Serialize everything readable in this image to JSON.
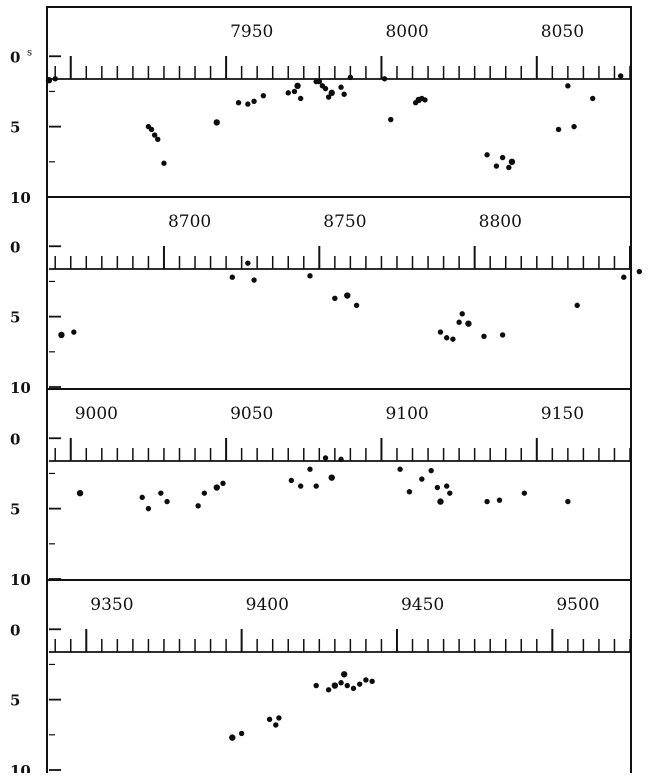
{
  "figure": {
    "unit_superscript": "s"
  },
  "chart_data": [
    {
      "type": "scatter",
      "x_ticks": [
        "7950",
        "8000",
        "8050"
      ],
      "y_ticks": [
        "0",
        "5",
        "10"
      ],
      "xlim": [
        7893,
        8080
      ],
      "ylim": [
        -3.5,
        10
      ],
      "y_direction": "down",
      "grid": false,
      "points": [
        [
          7893,
          1.7
        ],
        [
          7895,
          1.6
        ],
        [
          7925,
          5.0
        ],
        [
          7926,
          5.2
        ],
        [
          7927,
          5.6
        ],
        [
          7928,
          5.9
        ],
        [
          7930,
          7.6
        ],
        [
          7947,
          4.7
        ],
        [
          7954,
          3.3
        ],
        [
          7957,
          3.4
        ],
        [
          7959,
          3.2
        ],
        [
          7962,
          2.8
        ],
        [
          7970,
          2.6
        ],
        [
          7972,
          2.5
        ],
        [
          7973,
          2.1
        ],
        [
          7974,
          3.0
        ],
        [
          7979,
          1.8
        ],
        [
          7980,
          1.8
        ],
        [
          7981,
          2.1
        ],
        [
          7982,
          2.3
        ],
        [
          7983,
          2.9
        ],
        [
          7984,
          2.6
        ],
        [
          7987,
          2.2
        ],
        [
          7988,
          2.7
        ],
        [
          7990,
          1.5
        ],
        [
          8001,
          1.6
        ],
        [
          8003,
          4.5
        ],
        [
          8011,
          3.3
        ],
        [
          8012,
          3.1
        ],
        [
          8013,
          3.0
        ],
        [
          8014,
          3.1
        ],
        [
          8034,
          7.0
        ],
        [
          8037,
          7.8
        ],
        [
          8039,
          7.2
        ],
        [
          8041,
          7.9
        ],
        [
          8042,
          7.5
        ],
        [
          8057,
          5.2
        ],
        [
          8060,
          2.1
        ],
        [
          8062,
          5.0
        ],
        [
          8068,
          3.0
        ],
        [
          8077,
          1.4
        ]
      ]
    },
    {
      "type": "scatter",
      "x_ticks": [
        "8700",
        "8750",
        "8800"
      ],
      "y_ticks": [
        "0",
        "5",
        "10"
      ],
      "xlim": [
        8663,
        8850
      ],
      "ylim": [
        -3.5,
        10
      ],
      "y_direction": "down",
      "grid": false,
      "points": [
        [
          8667,
          6.3
        ],
        [
          8671,
          6.1
        ],
        [
          8722,
          2.2
        ],
        [
          8727,
          1.2
        ],
        [
          8729,
          2.4
        ],
        [
          8747,
          2.1
        ],
        [
          8755,
          3.7
        ],
        [
          8759,
          3.5
        ],
        [
          8762,
          4.2
        ],
        [
          8789,
          6.1
        ],
        [
          8791,
          6.5
        ],
        [
          8793,
          6.6
        ],
        [
          8795,
          5.4
        ],
        [
          8796,
          4.8
        ],
        [
          8798,
          5.5
        ],
        [
          8803,
          6.4
        ],
        [
          8809,
          6.3
        ],
        [
          8833,
          4.2
        ],
        [
          8848,
          2.2
        ],
        [
          8853,
          1.8
        ]
      ]
    },
    {
      "type": "scatter",
      "x_ticks": [
        "9000",
        "9050",
        "9100",
        "9150"
      ],
      "y_ticks": [
        "0",
        "5",
        "10"
      ],
      "xlim": [
        8993,
        9180
      ],
      "ylim": [
        -3.5,
        10
      ],
      "y_direction": "down",
      "grid": false,
      "points": [
        [
          9003,
          3.9
        ],
        [
          9023,
          4.2
        ],
        [
          9025,
          5.0
        ],
        [
          9029,
          3.9
        ],
        [
          9031,
          4.5
        ],
        [
          9041,
          4.8
        ],
        [
          9043,
          3.9
        ],
        [
          9047,
          3.5
        ],
        [
          9049,
          3.2
        ],
        [
          9071,
          3.0
        ],
        [
          9074,
          3.4
        ],
        [
          9077,
          2.2
        ],
        [
          9079,
          3.4
        ],
        [
          9082,
          1.4
        ],
        [
          9084,
          2.8
        ],
        [
          9087,
          1.5
        ],
        [
          9106,
          2.2
        ],
        [
          9109,
          3.8
        ],
        [
          9113,
          2.9
        ],
        [
          9116,
          2.3
        ],
        [
          9118,
          3.5
        ],
        [
          9119,
          4.5
        ],
        [
          9121,
          3.4
        ],
        [
          9122,
          3.9
        ],
        [
          9134,
          4.5
        ],
        [
          9138,
          4.4
        ],
        [
          9146,
          3.9
        ],
        [
          9160,
          4.5
        ]
      ]
    },
    {
      "type": "scatter",
      "x_ticks": [
        "9350",
        "9400",
        "9450",
        "9500"
      ],
      "y_ticks": [
        "0",
        "5",
        "10"
      ],
      "xlim": [
        9338,
        9525
      ],
      "ylim": [
        -3.5,
        10
      ],
      "y_direction": "down",
      "grid": false,
      "points": [
        [
          9397,
          7.7
        ],
        [
          9400,
          7.4
        ],
        [
          9409,
          6.4
        ],
        [
          9411,
          6.8
        ],
        [
          9412,
          6.3
        ],
        [
          9424,
          4.0
        ],
        [
          9428,
          4.3
        ],
        [
          9430,
          4.0
        ],
        [
          9432,
          3.8
        ],
        [
          9434,
          4.0
        ],
        [
          9436,
          4.2
        ],
        [
          9438,
          3.9
        ],
        [
          9440,
          3.6
        ],
        [
          9442,
          3.7
        ],
        [
          9433,
          3.2
        ]
      ]
    }
  ]
}
